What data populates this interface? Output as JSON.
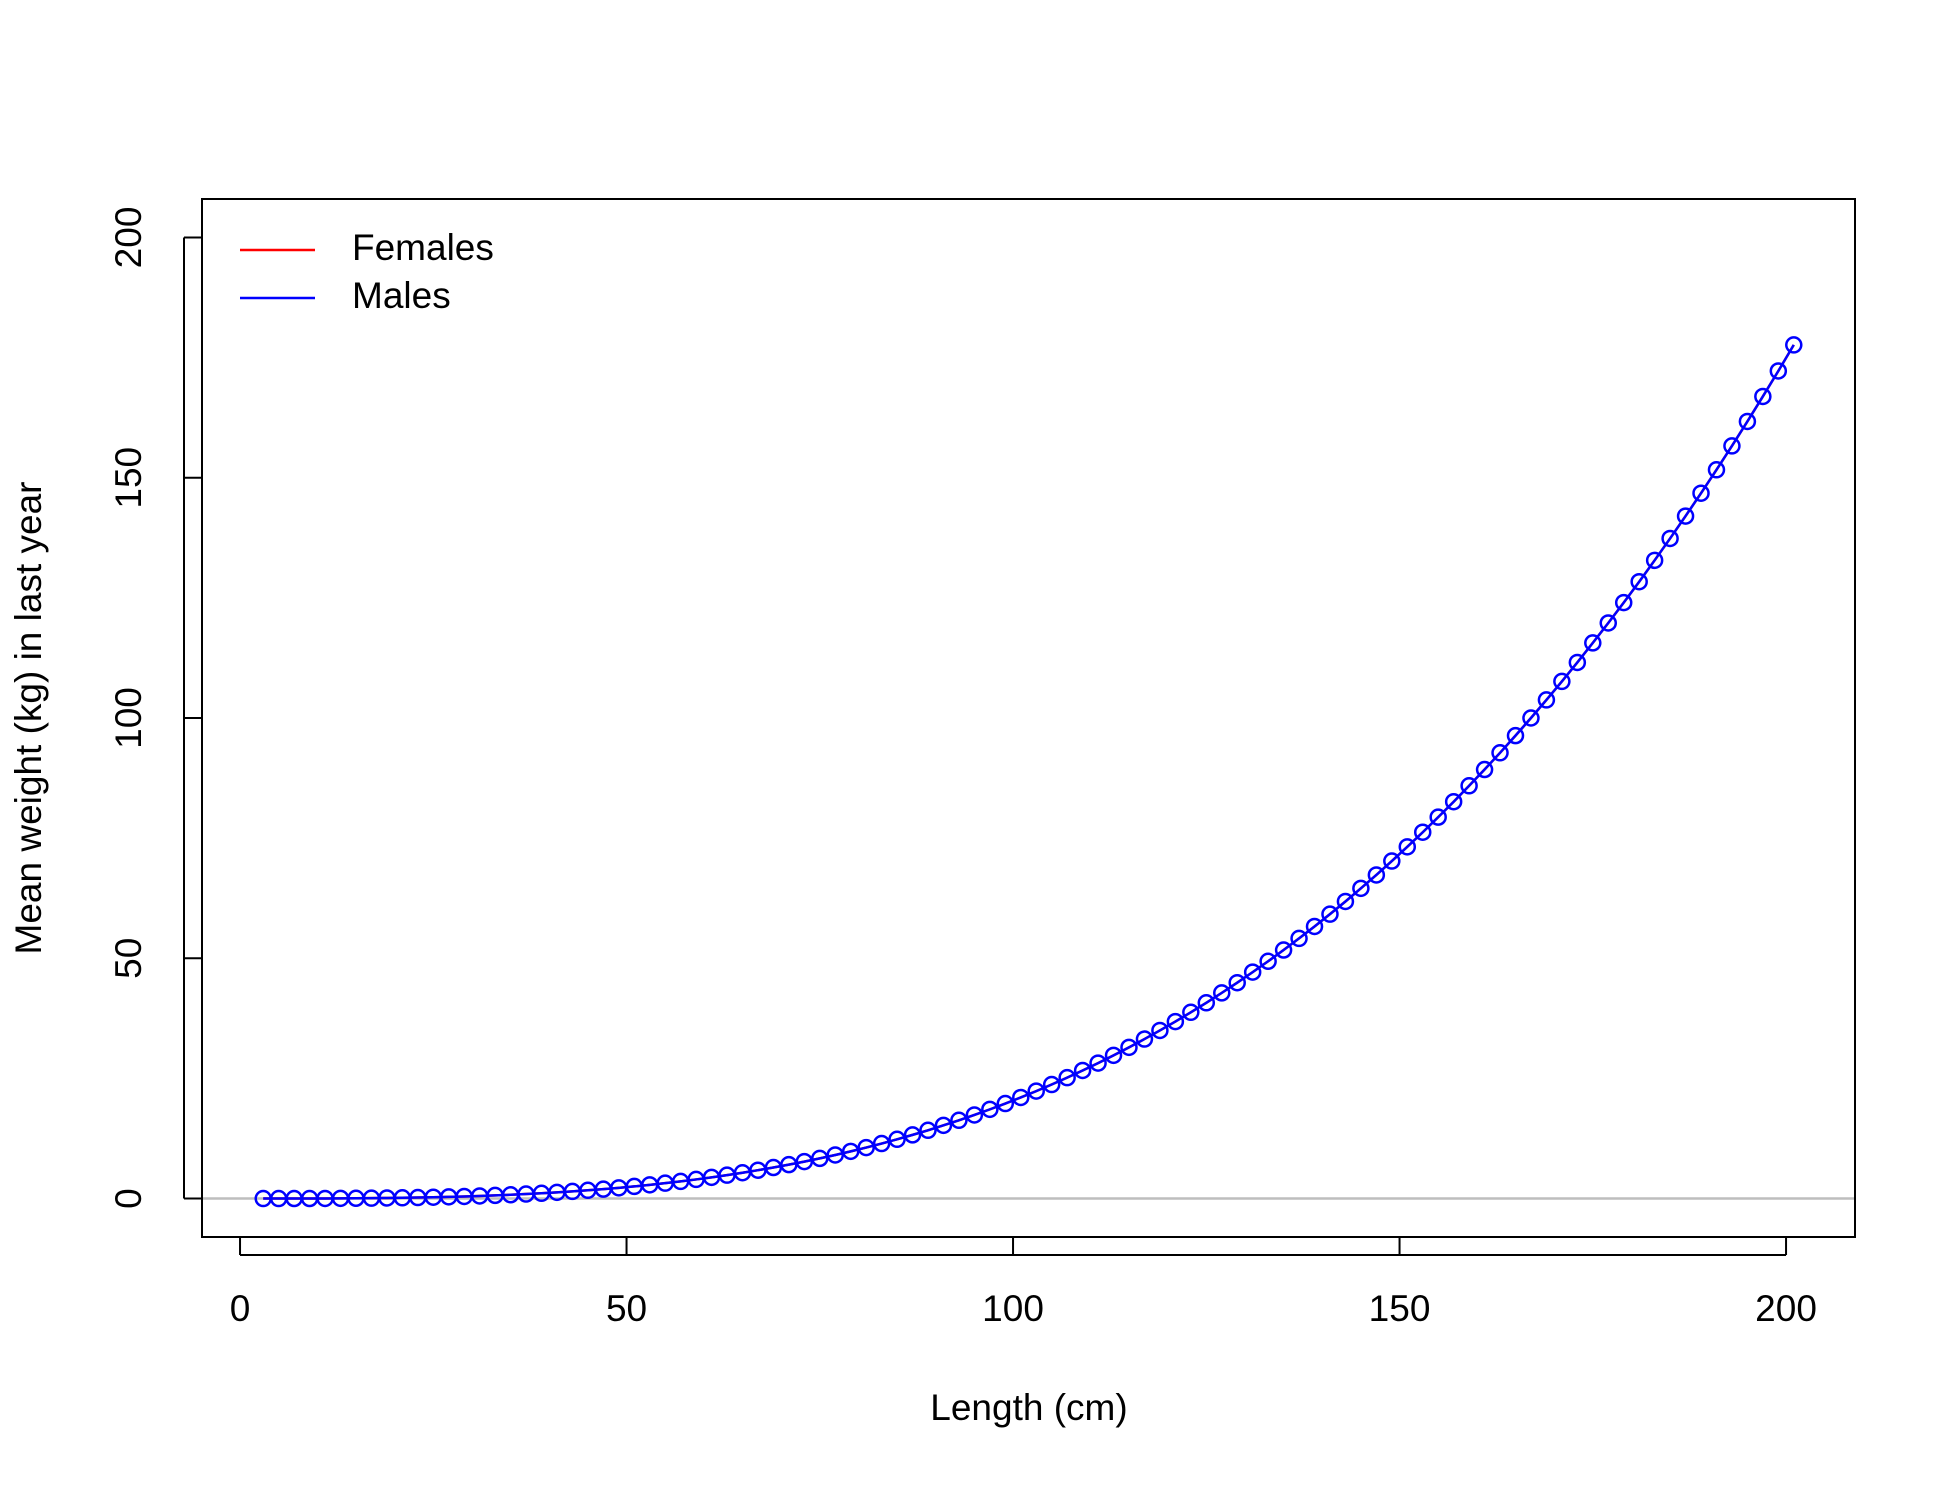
{
  "chart_data": {
    "type": "line",
    "xlabel": "Length (cm)",
    "ylabel": "Mean weight (kg) in last year",
    "x": [
      3,
      5,
      7,
      9,
      11,
      13,
      15,
      17,
      19,
      21,
      23,
      25,
      27,
      29,
      31,
      33,
      35,
      37,
      39,
      41,
      43,
      45,
      47,
      49,
      51,
      53,
      55,
      57,
      59,
      61,
      63,
      65,
      67,
      69,
      71,
      73,
      75,
      77,
      79,
      81,
      83,
      85,
      87,
      89,
      91,
      93,
      95,
      97,
      99,
      101,
      103,
      105,
      107,
      109,
      111,
      113,
      115,
      117,
      119,
      121,
      123,
      125,
      127,
      129,
      131,
      133,
      135,
      137,
      139,
      141,
      143,
      145,
      147,
      149,
      151,
      153,
      155,
      157,
      159,
      161,
      163,
      165,
      167,
      169,
      171,
      173,
      175,
      177,
      179,
      181,
      183,
      185,
      187,
      189,
      191,
      193,
      195,
      197,
      199,
      201
    ],
    "series": [
      {
        "name": "Females",
        "color": "#ff0000",
        "markers": false,
        "values": [
          0,
          0,
          0.01,
          0.01,
          0.02,
          0.04,
          0.06,
          0.08,
          0.12,
          0.16,
          0.21,
          0.28,
          0.35,
          0.44,
          0.54,
          0.66,
          0.79,
          0.94,
          1.1,
          1.29,
          1.49,
          1.72,
          1.96,
          2.23,
          2.53,
          2.85,
          3.2,
          3.57,
          3.98,
          4.41,
          4.87,
          5.37,
          5.9,
          6.46,
          7.06,
          7.69,
          8.36,
          9.07,
          9.82,
          10.61,
          11.45,
          12.33,
          13.25,
          14.21,
          15.23,
          16.29,
          17.4,
          18.56,
          19.77,
          21.04,
          22.36,
          23.73,
          25.16,
          26.65,
          28.19,
          29.8,
          31.46,
          33.19,
          34.98,
          36.83,
          38.76,
          40.74,
          42.8,
          44.92,
          47.12,
          49.38,
          51.72,
          54.13,
          56.62,
          59.18,
          61.82,
          64.55,
          67.34,
          70.23,
          73.19,
          76.23,
          79.37,
          82.58,
          85.89,
          89.28,
          92.76,
          96.33,
          100,
          103.76,
          107.61,
          111.56,
          115.63,
          119.77,
          124.02,
          128.36,
          132.81,
          137.36,
          142.02,
          146.78,
          151.65,
          156.62,
          161.71,
          166.91,
          172.21,
          177.64
        ]
      },
      {
        "name": "Males",
        "color": "#0000ff",
        "markers": true,
        "values": [
          0,
          0,
          0.01,
          0.01,
          0.02,
          0.04,
          0.06,
          0.08,
          0.12,
          0.16,
          0.21,
          0.28,
          0.35,
          0.44,
          0.54,
          0.66,
          0.79,
          0.94,
          1.1,
          1.29,
          1.49,
          1.72,
          1.96,
          2.23,
          2.53,
          2.85,
          3.2,
          3.57,
          3.98,
          4.41,
          4.87,
          5.37,
          5.9,
          6.46,
          7.06,
          7.69,
          8.36,
          9.07,
          9.82,
          10.61,
          11.45,
          12.33,
          13.25,
          14.21,
          15.23,
          16.29,
          17.4,
          18.56,
          19.77,
          21.04,
          22.36,
          23.73,
          25.16,
          26.65,
          28.19,
          29.8,
          31.46,
          33.19,
          34.98,
          36.83,
          38.76,
          40.74,
          42.8,
          44.92,
          47.12,
          49.38,
          51.72,
          54.13,
          56.62,
          59.18,
          61.82,
          64.55,
          67.34,
          70.23,
          73.19,
          76.23,
          79.37,
          82.58,
          85.89,
          89.28,
          92.76,
          96.33,
          100,
          103.76,
          107.61,
          111.56,
          115.63,
          119.77,
          124.02,
          128.36,
          132.81,
          137.36,
          142.02,
          146.78,
          151.65,
          156.62,
          161.71,
          166.91,
          172.21,
          177.64
        ]
      }
    ],
    "xlim": [
      -4.92,
      208.92
    ],
    "xticks": [
      0,
      50,
      100,
      150,
      200
    ],
    "ylim": [
      -8,
      208
    ],
    "yticks": [
      0,
      50,
      100,
      150,
      200
    ],
    "hline": {
      "value": 0,
      "color": "#bebebe"
    },
    "legend": "topleft"
  }
}
